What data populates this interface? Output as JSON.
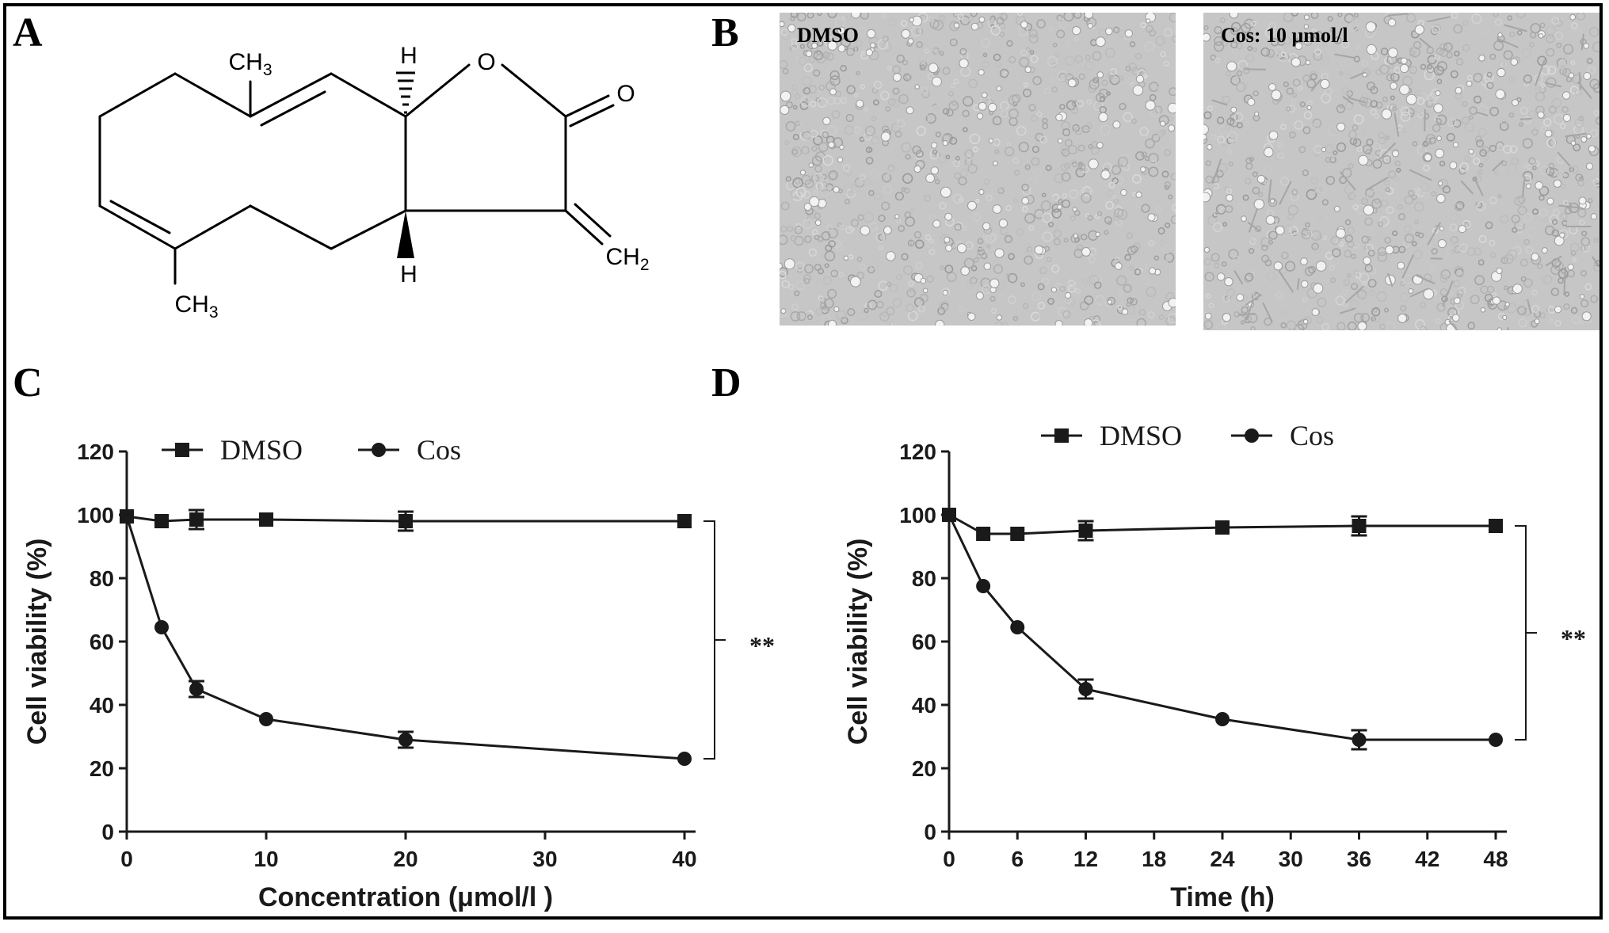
{
  "panels": {
    "a": {
      "letter": "A"
    },
    "b": {
      "letter": "B"
    },
    "c": {
      "letter": "C"
    },
    "d": {
      "letter": "D"
    }
  },
  "structure": {
    "labels": {
      "ch3_top": "CH",
      "ch3_bottom": "CH",
      "ch3_sub": "3",
      "ch2": "CH",
      "ch2_sub": "2",
      "h_top": "H",
      "h_bottom": "H",
      "o_ring": "O",
      "o_carbonyl": "O"
    }
  },
  "micrographs": [
    {
      "label": "DMSO"
    },
    {
      "label": "Cos: 10 μmol/l"
    }
  ],
  "chart_data": [
    {
      "type": "line",
      "xlabel": "Concentration (μmol/l )",
      "ylabel": "Cell viability (%)",
      "xlim": [
        0,
        40
      ],
      "ylim": [
        0,
        120
      ],
      "xticks": [
        0,
        10,
        20,
        30,
        40
      ],
      "yticks": [
        0,
        20,
        40,
        60,
        80,
        100,
        120
      ],
      "legend_position": "top",
      "significance": "**",
      "series": [
        {
          "name": "DMSO",
          "marker": "square",
          "x": [
            0,
            2.5,
            5,
            10,
            20,
            40
          ],
          "y": [
            99.5,
            98,
            98.5,
            98.5,
            98,
            98
          ],
          "err": [
            1,
            1,
            3,
            1,
            3,
            1
          ]
        },
        {
          "name": "Cos",
          "marker": "circle",
          "x": [
            0,
            2.5,
            5,
            10,
            20,
            40
          ],
          "y": [
            99.5,
            64.5,
            45,
            35.5,
            29,
            23
          ],
          "err": [
            1,
            1,
            2.5,
            1,
            2.5,
            1
          ]
        }
      ]
    },
    {
      "type": "line",
      "xlabel": "Time (h)",
      "ylabel": "Cell viability (%)",
      "xlim": [
        0,
        48
      ],
      "ylim": [
        0,
        120
      ],
      "xticks": [
        0,
        6,
        12,
        18,
        24,
        30,
        36,
        42,
        48
      ],
      "yticks": [
        0,
        20,
        40,
        60,
        80,
        100,
        120
      ],
      "legend_position": "top",
      "significance": "**",
      "series": [
        {
          "name": "DMSO",
          "marker": "square",
          "x": [
            0,
            3,
            6,
            12,
            24,
            36,
            48
          ],
          "y": [
            100,
            94,
            94,
            95,
            96,
            96.5,
            96.5
          ],
          "err": [
            1,
            1,
            1,
            3,
            1,
            3,
            1
          ]
        },
        {
          "name": "Cos",
          "marker": "circle",
          "x": [
            0,
            3,
            6,
            12,
            24,
            36,
            48
          ],
          "y": [
            100,
            77.5,
            64.5,
            45,
            35.5,
            29,
            29
          ],
          "err": [
            1,
            1,
            1,
            3,
            1,
            3,
            1
          ]
        }
      ]
    }
  ]
}
